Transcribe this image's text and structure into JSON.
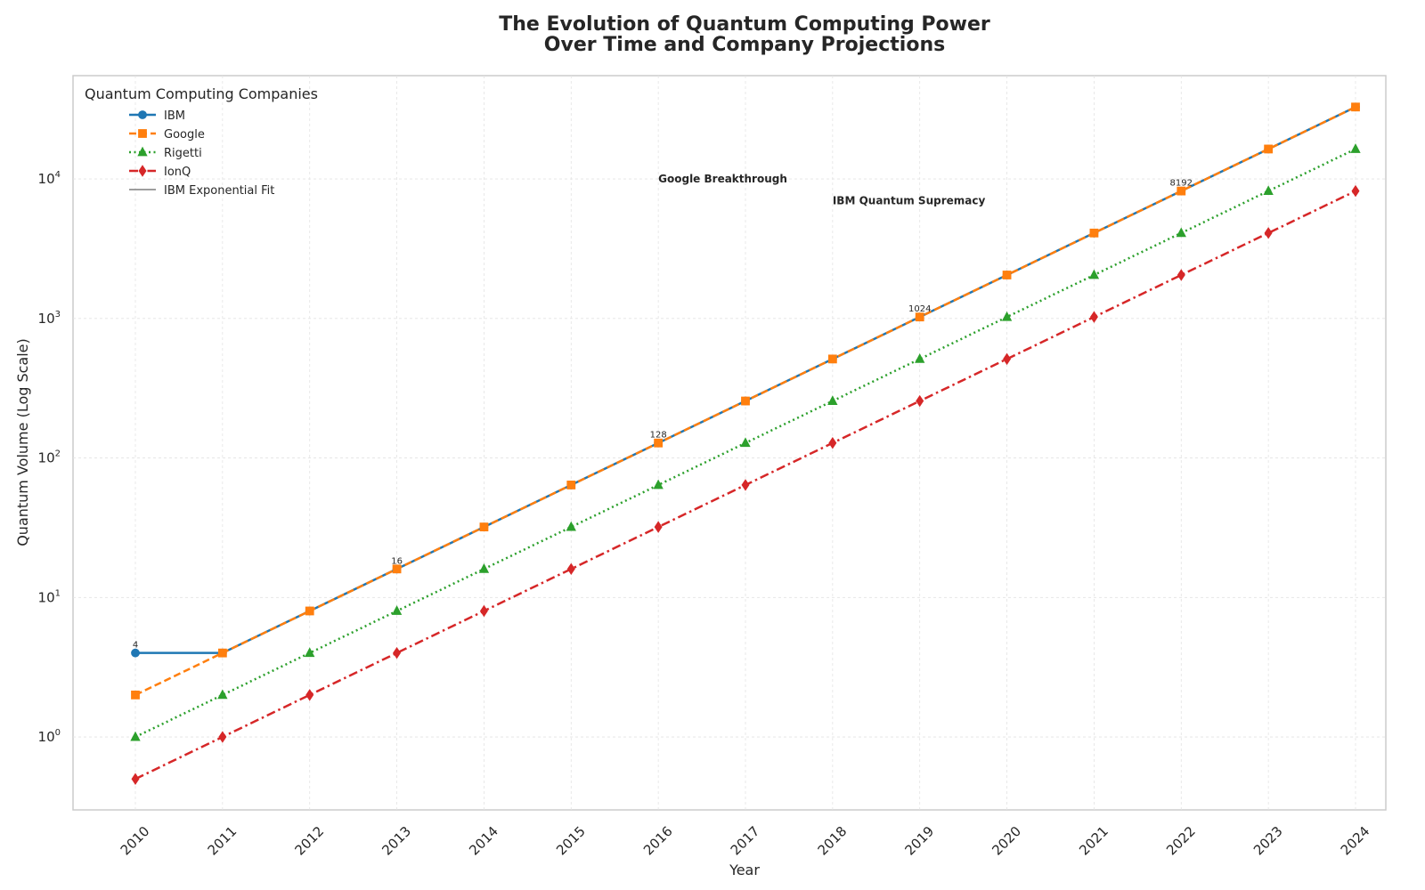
{
  "chart_data": {
    "type": "line",
    "title": "The Evolution of Quantum Computing Power\nOver Time and Company Projections",
    "xlabel": "Year",
    "ylabel": "Quantum Volume (Log Scale)",
    "yscale": "log",
    "ylim": [
      0.3,
      55000
    ],
    "grid": true,
    "legend": {
      "title": "Quantum Computing Companies",
      "placement": "top-left"
    },
    "x": [
      2010,
      2011,
      2012,
      2013,
      2014,
      2015,
      2016,
      2017,
      2018,
      2019,
      2020,
      2021,
      2022,
      2023,
      2024
    ],
    "y_ticks": [
      {
        "base": "10",
        "exp": "0",
        "value": 1
      },
      {
        "base": "10",
        "exp": "1",
        "value": 10
      },
      {
        "base": "10",
        "exp": "2",
        "value": 100
      },
      {
        "base": "10",
        "exp": "3",
        "value": 1000
      },
      {
        "base": "10",
        "exp": "4",
        "value": 10000
      }
    ],
    "series": [
      {
        "name": "IBM",
        "color": "#1f77b4",
        "marker": "circle",
        "dash": "solid",
        "values": [
          4,
          4,
          8,
          16,
          32,
          64,
          128,
          256,
          512,
          1024,
          2048,
          4096,
          8192,
          16384,
          32768
        ]
      },
      {
        "name": "Google",
        "color": "#ff7f0e",
        "marker": "square",
        "dash": "dashed",
        "values": [
          2,
          4,
          8,
          16,
          32,
          64,
          128,
          256,
          512,
          1024,
          2048,
          4096,
          8192,
          16384,
          32768
        ]
      },
      {
        "name": "Rigetti",
        "color": "#2ca02c",
        "marker": "triangle",
        "dash": "dotted",
        "values": [
          1,
          2,
          4,
          8,
          16,
          32,
          64,
          128,
          256,
          512,
          1024,
          2048,
          4096,
          8192,
          16384
        ]
      },
      {
        "name": "IonQ",
        "color": "#d62728",
        "marker": "diamond",
        "dash": "dashdot",
        "values": [
          0.5,
          1,
          2,
          4,
          8,
          16,
          32,
          64,
          128,
          256,
          512,
          1024,
          2048,
          4096,
          8192
        ]
      }
    ],
    "fit": {
      "name": "IBM Exponential Fit",
      "color": "#7f7f7f"
    },
    "point_labels": [
      {
        "x": 2010,
        "y": 4,
        "text": "4"
      },
      {
        "x": 2013,
        "y": 16,
        "text": "16"
      },
      {
        "x": 2016,
        "y": 128,
        "text": "128"
      },
      {
        "x": 2019,
        "y": 1024,
        "text": "1024"
      },
      {
        "x": 2022,
        "y": 8192,
        "text": "8192"
      }
    ],
    "annotations": [
      {
        "x": 2016,
        "y": 10000,
        "text": "Google Breakthrough"
      },
      {
        "x": 2018,
        "y": 7000,
        "text": "IBM Quantum Supremacy"
      }
    ]
  }
}
